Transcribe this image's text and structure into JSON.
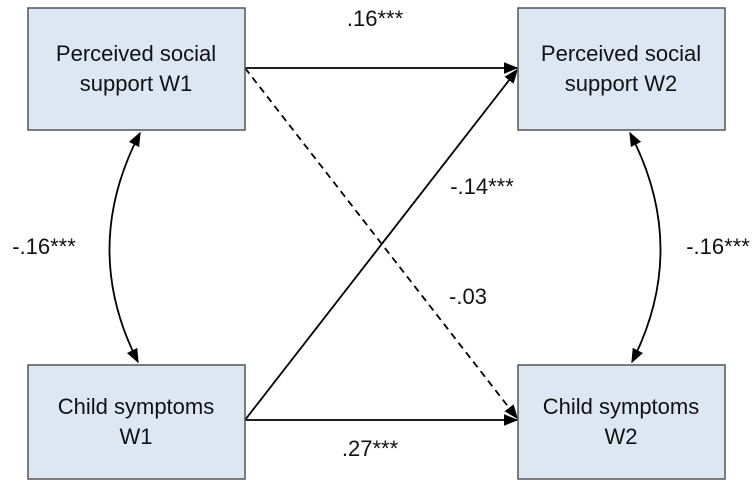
{
  "nodes": [
    {
      "lines": [
        "Perceived social",
        "support W1"
      ]
    },
    {
      "lines": [
        "Perceived social",
        "support W2"
      ]
    },
    {
      "lines": [
        "Child symptoms",
        "W1"
      ]
    },
    {
      "lines": [
        "Child symptoms",
        "W2"
      ]
    }
  ],
  "edges": [
    {
      "label": ".16***"
    },
    {
      "label": "-.14***"
    },
    {
      "label": "-.03"
    },
    {
      "label": ".27***"
    },
    {
      "label": "-.16***"
    },
    {
      "label": "-.16***"
    }
  ]
}
